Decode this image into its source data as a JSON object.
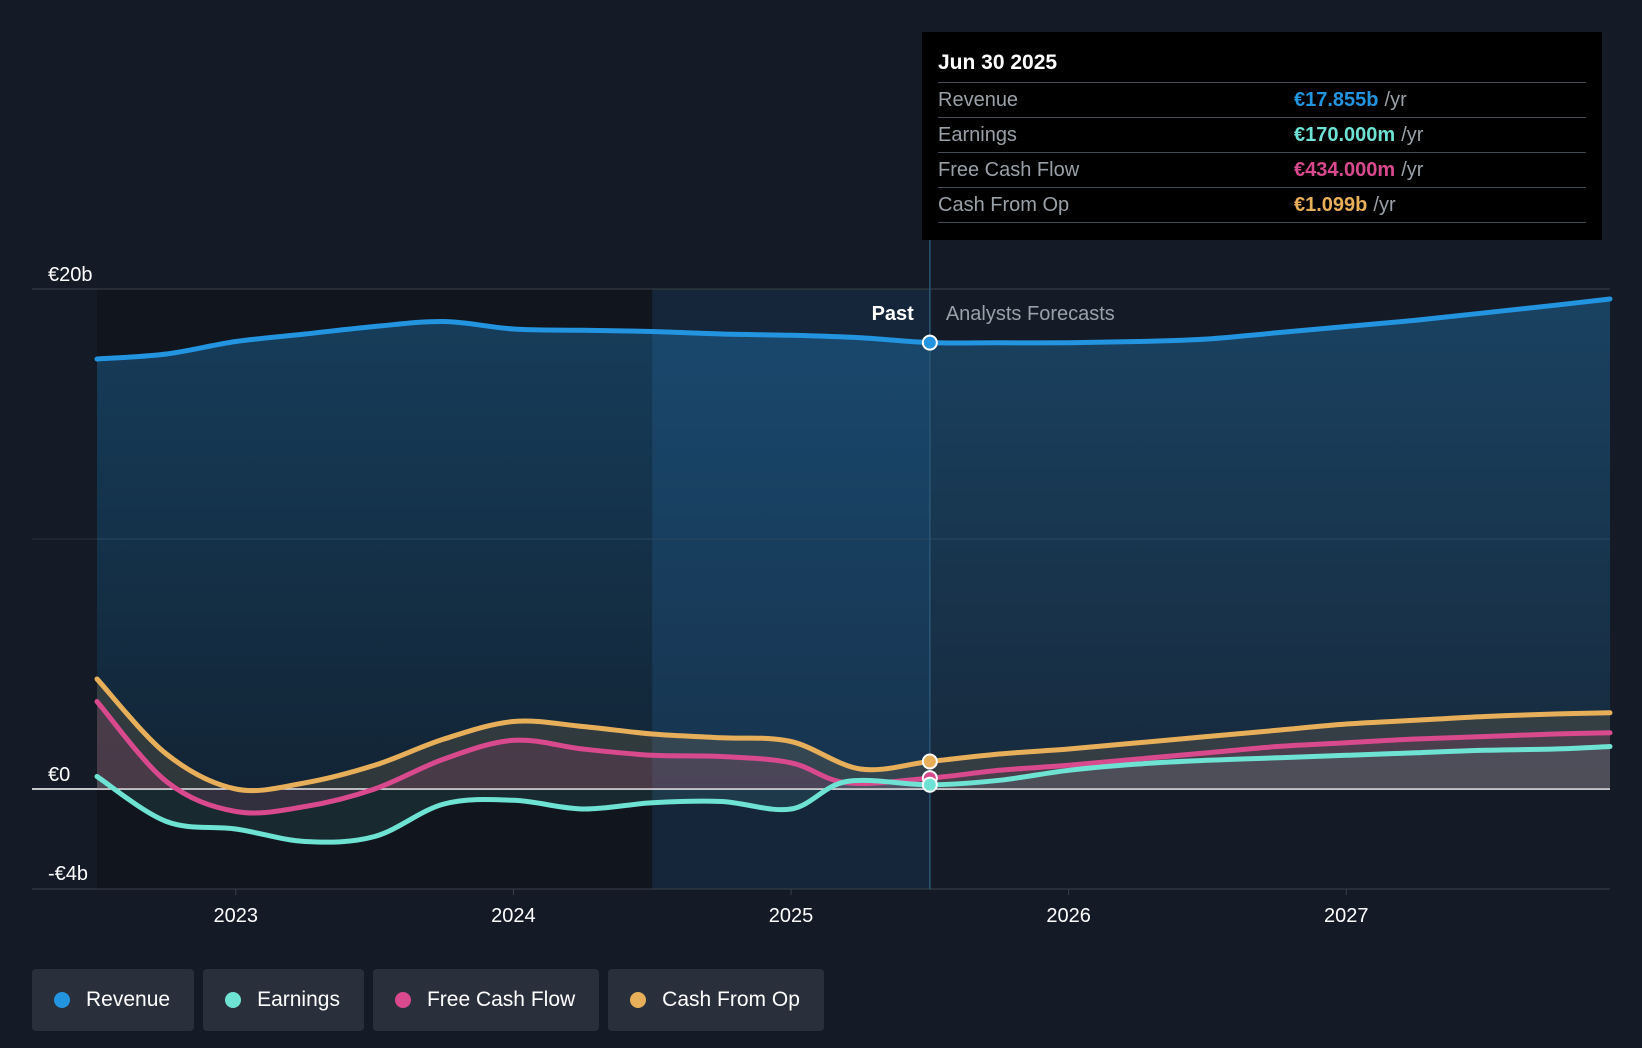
{
  "tooltip": {
    "date": "Jun 30 2025",
    "unit": "/yr",
    "rows": [
      {
        "label": "Revenue",
        "value": "€17.855b",
        "color": "#2394df"
      },
      {
        "label": "Earnings",
        "value": "€170.000m",
        "color": "#6ee2d3"
      },
      {
        "label": "Free Cash Flow",
        "value": "€434.000m",
        "color": "#d9498d"
      },
      {
        "label": "Cash From Op",
        "value": "€1.099b",
        "color": "#e8af5a"
      }
    ]
  },
  "legend": [
    {
      "label": "Revenue",
      "color": "#2394df"
    },
    {
      "label": "Earnings",
      "color": "#6ee2d3"
    },
    {
      "label": "Free Cash Flow",
      "color": "#d9498d"
    },
    {
      "label": "Cash From Op",
      "color": "#e8af5a"
    }
  ],
  "chart_data": {
    "type": "line",
    "title": "",
    "y_tick_labels": [
      "€20b",
      "€0",
      "-€4b"
    ],
    "y_ticks": [
      20,
      0,
      -4
    ],
    "ylim": [
      -4,
      20
    ],
    "xlim": [
      2022.5,
      2027.95
    ],
    "x_ticks": [
      2023,
      2024,
      2025,
      2026,
      2027
    ],
    "x_tick_labels": [
      "2023",
      "2024",
      "2025",
      "2026",
      "2027"
    ],
    "past_label": "Past",
    "forecast_label": "Analysts Forecasts",
    "divider_x": 2025.5,
    "shaded_start_x": 2024.5,
    "series": [
      {
        "name": "Revenue",
        "color": "#2394df",
        "x": [
          2022.5,
          2022.75,
          2023.0,
          2023.25,
          2023.5,
          2023.75,
          2024.0,
          2024.25,
          2024.5,
          2024.75,
          2025.0,
          2025.25,
          2025.5,
          2025.75,
          2026.0,
          2026.25,
          2026.5,
          2026.75,
          2027.0,
          2027.25,
          2027.5,
          2027.75,
          2027.95
        ],
        "values": [
          17.2,
          17.4,
          17.9,
          18.2,
          18.5,
          18.7,
          18.4,
          18.35,
          18.3,
          18.2,
          18.15,
          18.05,
          17.855,
          17.85,
          17.85,
          17.9,
          18.0,
          18.25,
          18.5,
          18.75,
          19.05,
          19.35,
          19.6
        ]
      },
      {
        "name": "Earnings",
        "color": "#6ee2d3",
        "x": [
          2022.5,
          2022.75,
          2023.0,
          2023.25,
          2023.5,
          2023.75,
          2024.0,
          2024.25,
          2024.5,
          2024.75,
          2025.0,
          2025.2,
          2025.5,
          2025.75,
          2026.0,
          2026.25,
          2026.5,
          2026.75,
          2027.0,
          2027.25,
          2027.5,
          2027.75,
          2027.95
        ],
        "values": [
          0.5,
          -1.3,
          -1.6,
          -2.1,
          -1.9,
          -0.6,
          -0.45,
          -0.8,
          -0.55,
          -0.5,
          -0.8,
          0.3,
          0.17,
          0.35,
          0.75,
          1.0,
          1.15,
          1.25,
          1.35,
          1.45,
          1.55,
          1.6,
          1.7
        ]
      },
      {
        "name": "Free Cash Flow",
        "color": "#d9498d",
        "x": [
          2022.5,
          2022.75,
          2023.0,
          2023.25,
          2023.5,
          2023.75,
          2024.0,
          2024.25,
          2024.5,
          2024.75,
          2025.0,
          2025.2,
          2025.5,
          2025.75,
          2026.0,
          2026.25,
          2026.5,
          2026.75,
          2027.0,
          2027.25,
          2027.5,
          2027.75,
          2027.95
        ],
        "values": [
          3.5,
          0.3,
          -0.9,
          -0.7,
          0.0,
          1.2,
          1.95,
          1.6,
          1.35,
          1.3,
          1.05,
          0.25,
          0.434,
          0.75,
          0.95,
          1.2,
          1.45,
          1.7,
          1.85,
          2.0,
          2.1,
          2.2,
          2.25
        ]
      },
      {
        "name": "Cash From Op",
        "color": "#e8af5a",
        "x": [
          2022.5,
          2022.75,
          2023.0,
          2023.25,
          2023.5,
          2023.75,
          2024.0,
          2024.25,
          2024.5,
          2024.75,
          2025.0,
          2025.25,
          2025.5,
          2025.75,
          2026.0,
          2026.25,
          2026.5,
          2026.75,
          2027.0,
          2027.25,
          2027.5,
          2027.75,
          2027.95
        ],
        "values": [
          4.4,
          1.4,
          0.0,
          0.25,
          0.95,
          2.0,
          2.7,
          2.5,
          2.2,
          2.05,
          1.9,
          0.8,
          1.099,
          1.4,
          1.6,
          1.85,
          2.1,
          2.35,
          2.6,
          2.75,
          2.9,
          3.0,
          3.05
        ]
      }
    ]
  }
}
